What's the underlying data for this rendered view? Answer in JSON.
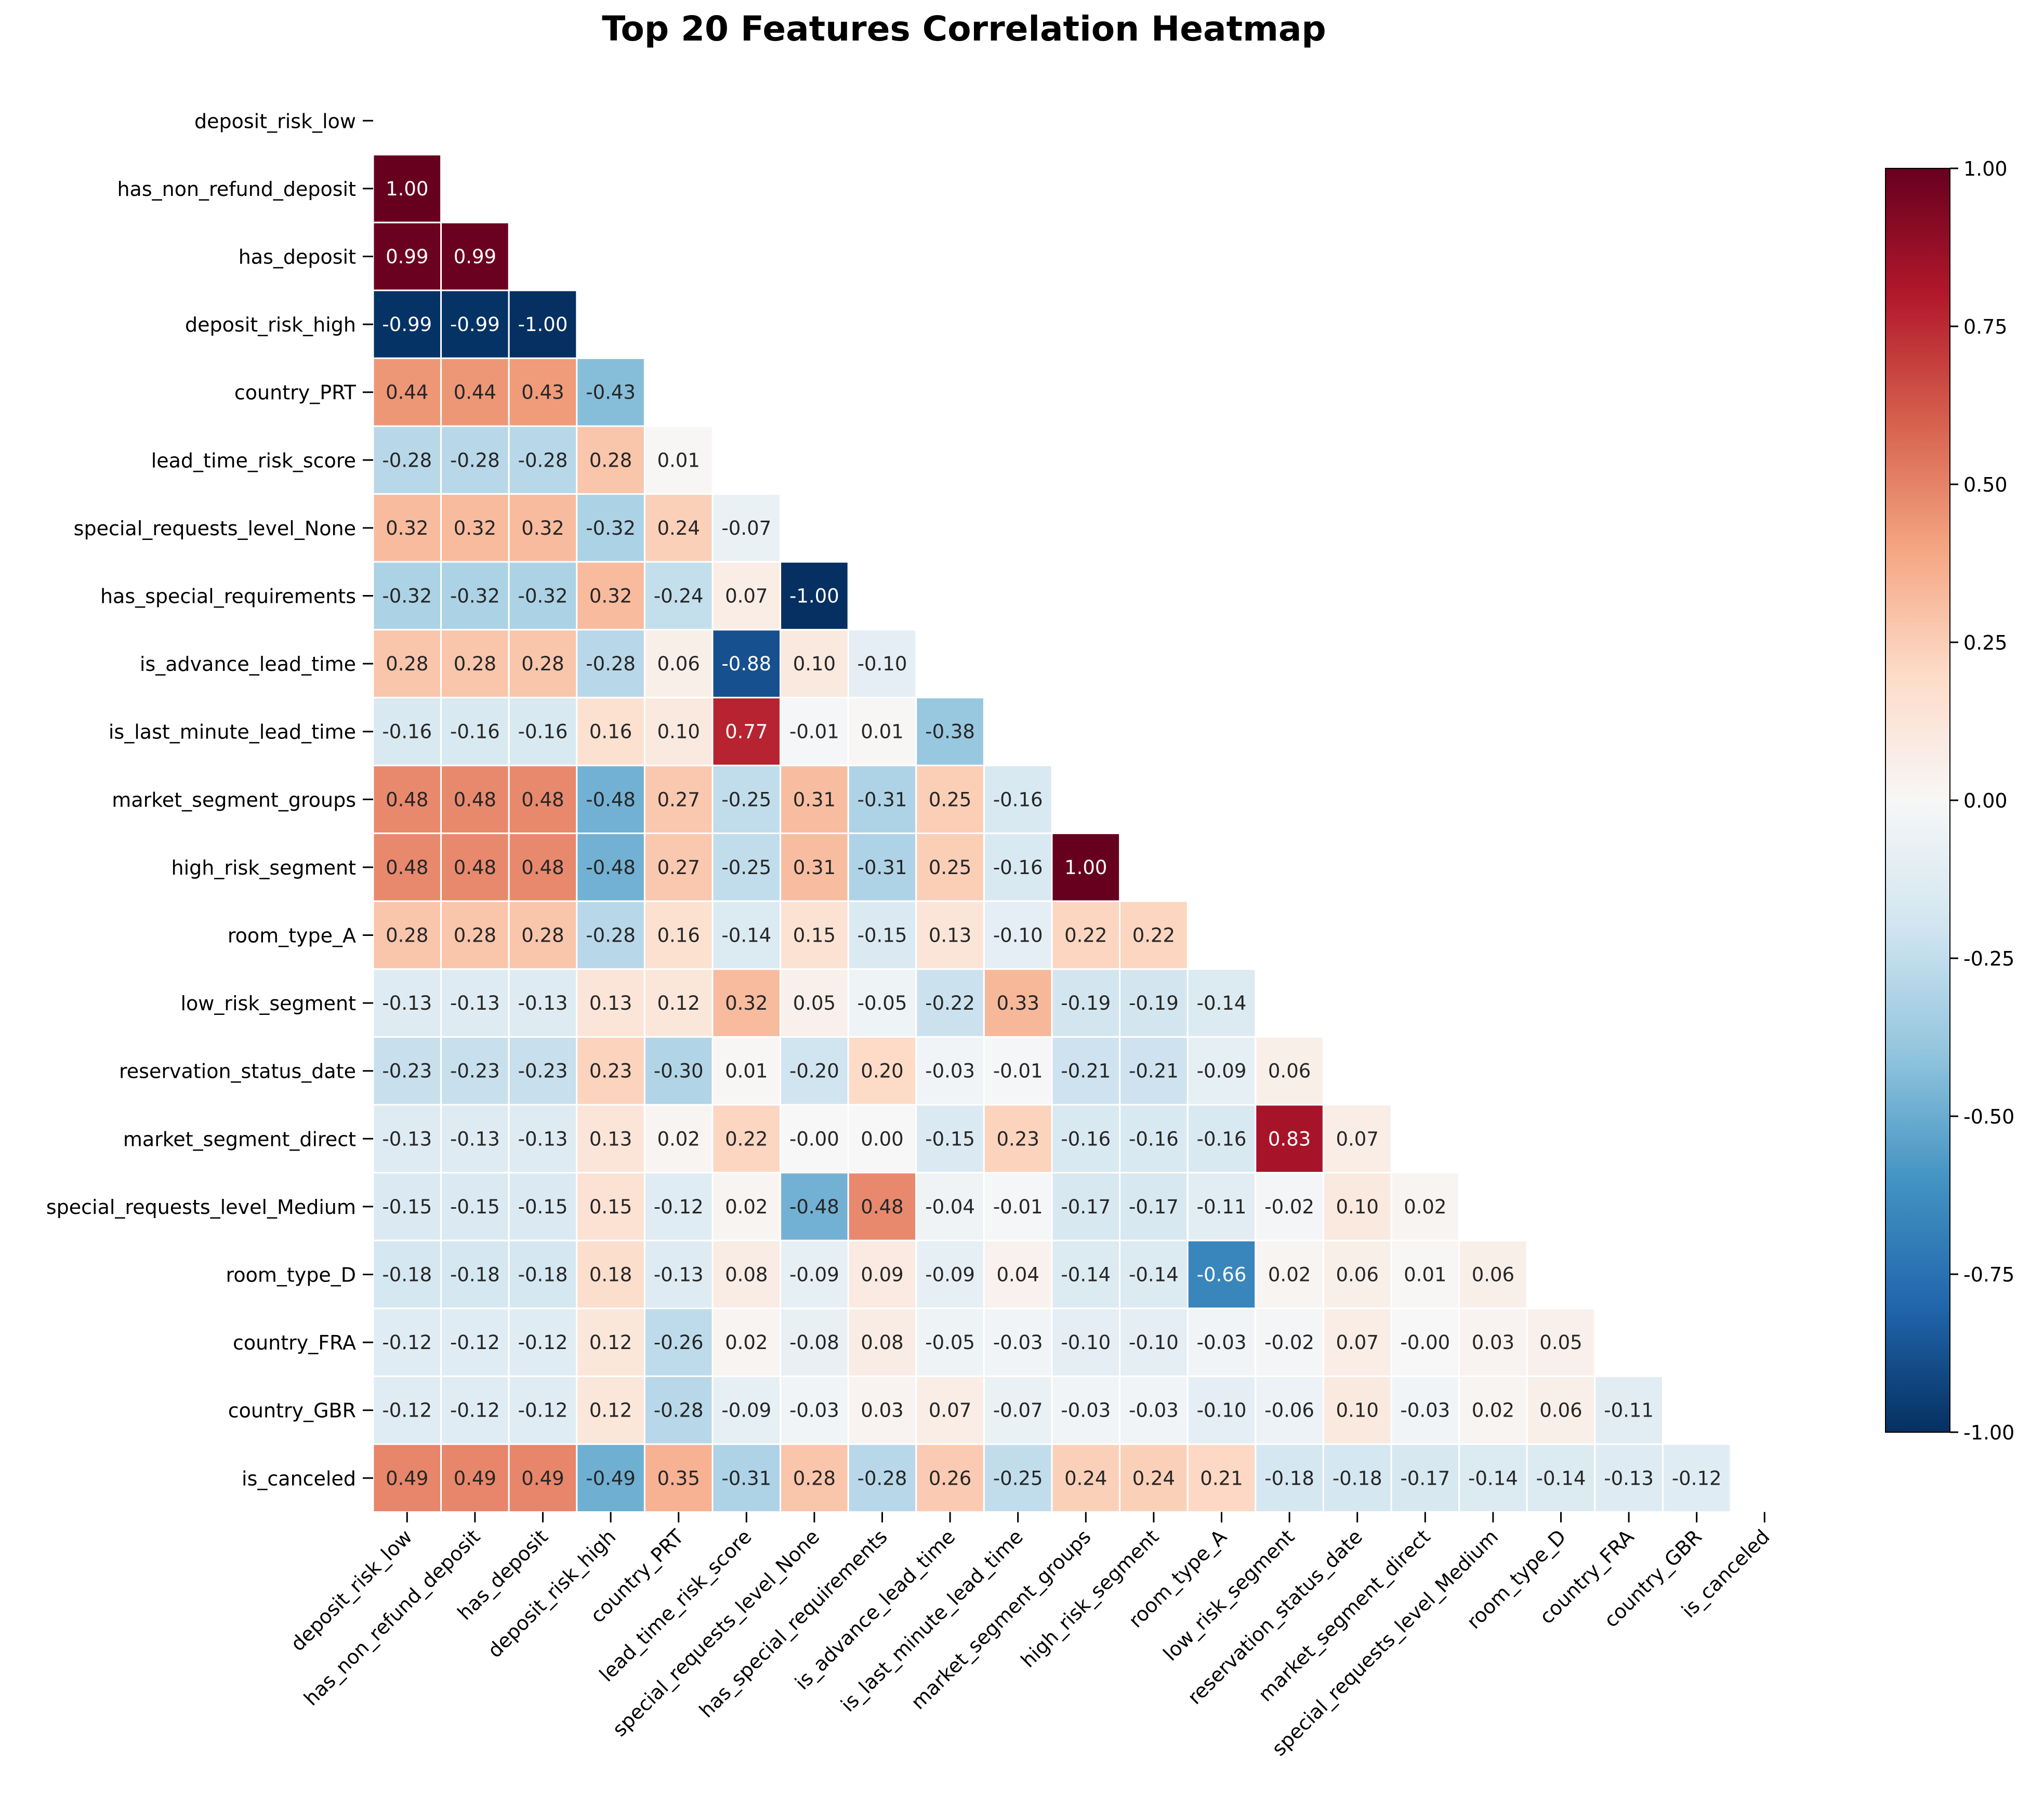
{
  "chart_data": {
    "type": "heatmap",
    "title": "Top 20 Features Correlation Heatmap",
    "xlabel": "",
    "ylabel": "",
    "labels": [
      "deposit_risk_low",
      "has_non_refund_deposit",
      "has_deposit",
      "deposit_risk_high",
      "country_PRT",
      "lead_time_risk_score",
      "special_requests_level_None",
      "has_special_requirements",
      "is_advance_lead_time",
      "is_last_minute_lead_time",
      "market_segment_groups",
      "high_risk_segment",
      "room_type_A",
      "low_risk_segment",
      "reservation_status_date",
      "market_segment_direct",
      "special_requests_level_Medium",
      "room_type_D",
      "country_FRA",
      "country_GBR",
      "is_canceled"
    ],
    "lower_triangle_values": [
      [],
      [
        "1.00"
      ],
      [
        "0.99",
        "0.99"
      ],
      [
        "-0.99",
        "-0.99",
        "-1.00"
      ],
      [
        "0.44",
        "0.44",
        "0.43",
        "-0.43"
      ],
      [
        "-0.28",
        "-0.28",
        "-0.28",
        "0.28",
        "0.01"
      ],
      [
        "0.32",
        "0.32",
        "0.32",
        "-0.32",
        "0.24",
        "-0.07"
      ],
      [
        "-0.32",
        "-0.32",
        "-0.32",
        "0.32",
        "-0.24",
        "0.07",
        "-1.00"
      ],
      [
        "0.28",
        "0.28",
        "0.28",
        "-0.28",
        "0.06",
        "-0.88",
        "0.10",
        "-0.10"
      ],
      [
        "-0.16",
        "-0.16",
        "-0.16",
        "0.16",
        "0.10",
        "0.77",
        "-0.01",
        "0.01",
        "-0.38"
      ],
      [
        "0.48",
        "0.48",
        "0.48",
        "-0.48",
        "0.27",
        "-0.25",
        "0.31",
        "-0.31",
        "0.25",
        "-0.16"
      ],
      [
        "0.48",
        "0.48",
        "0.48",
        "-0.48",
        "0.27",
        "-0.25",
        "0.31",
        "-0.31",
        "0.25",
        "-0.16",
        "1.00"
      ],
      [
        "0.28",
        "0.28",
        "0.28",
        "-0.28",
        "0.16",
        "-0.14",
        "0.15",
        "-0.15",
        "0.13",
        "-0.10",
        "0.22",
        "0.22"
      ],
      [
        "-0.13",
        "-0.13",
        "-0.13",
        "0.13",
        "0.12",
        "0.32",
        "0.05",
        "-0.05",
        "-0.22",
        "0.33",
        "-0.19",
        "-0.19",
        "-0.14"
      ],
      [
        "-0.23",
        "-0.23",
        "-0.23",
        "0.23",
        "-0.30",
        "0.01",
        "-0.20",
        "0.20",
        "-0.03",
        "-0.01",
        "-0.21",
        "-0.21",
        "-0.09",
        "0.06"
      ],
      [
        "-0.13",
        "-0.13",
        "-0.13",
        "0.13",
        "0.02",
        "0.22",
        "-0.00",
        "0.00",
        "-0.15",
        "0.23",
        "-0.16",
        "-0.16",
        "-0.16",
        "0.83",
        "0.07"
      ],
      [
        "-0.15",
        "-0.15",
        "-0.15",
        "0.15",
        "-0.12",
        "0.02",
        "-0.48",
        "0.48",
        "-0.04",
        "-0.01",
        "-0.17",
        "-0.17",
        "-0.11",
        "-0.02",
        "0.10",
        "0.02"
      ],
      [
        "-0.18",
        "-0.18",
        "-0.18",
        "0.18",
        "-0.13",
        "0.08",
        "-0.09",
        "0.09",
        "-0.09",
        "0.04",
        "-0.14",
        "-0.14",
        "-0.66",
        "0.02",
        "0.06",
        "0.01",
        "0.06"
      ],
      [
        "-0.12",
        "-0.12",
        "-0.12",
        "0.12",
        "-0.26",
        "0.02",
        "-0.08",
        "0.08",
        "-0.05",
        "-0.03",
        "-0.10",
        "-0.10",
        "-0.03",
        "-0.02",
        "0.07",
        "-0.00",
        "0.03",
        "0.05"
      ],
      [
        "-0.12",
        "-0.12",
        "-0.12",
        "0.12",
        "-0.28",
        "-0.09",
        "-0.03",
        "0.03",
        "0.07",
        "-0.07",
        "-0.03",
        "-0.03",
        "-0.10",
        "-0.06",
        "0.10",
        "-0.03",
        "0.02",
        "0.06",
        "-0.11"
      ],
      [
        "0.49",
        "0.49",
        "0.49",
        "-0.49",
        "0.35",
        "-0.31",
        "0.28",
        "-0.28",
        "0.26",
        "-0.25",
        "0.24",
        "0.24",
        "0.21",
        "-0.18",
        "-0.18",
        "-0.17",
        "-0.14",
        "-0.14",
        "-0.13",
        "-0.12"
      ]
    ],
    "colorbar": {
      "range": [
        -1.0,
        1.0
      ],
      "ticks": [
        "-1.00",
        "-0.75",
        "-0.50",
        "-0.25",
        "0.00",
        "0.25",
        "0.50",
        "0.75",
        "1.00"
      ],
      "colormap": "RdBu_r"
    },
    "mask": "upper-triangle-and-diagonal",
    "grid": false,
    "legend": "colorbar-right"
  }
}
